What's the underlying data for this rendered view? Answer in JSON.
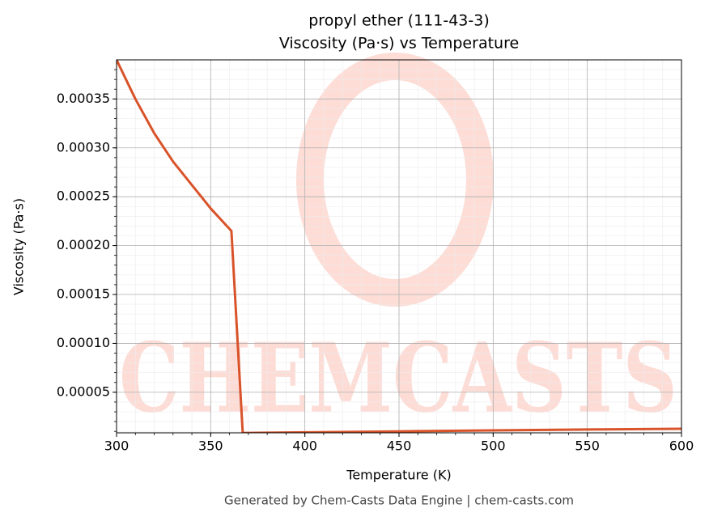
{
  "chart_data": {
    "type": "line",
    "title": "propyl ether (111-43-3)",
    "subtitle": "Viscosity (Pa·s) vs Temperature",
    "x_label": "Temperature (K)",
    "y_label": "Viscosity (Pa·s)",
    "footer": "Generated by Chem-Casts Data Engine | chem-casts.com",
    "watermark": "CHEMCASTS",
    "x": [
      300,
      310,
      320,
      330,
      340,
      350,
      361,
      367,
      400,
      450,
      500,
      550,
      600
    ],
    "series": [
      {
        "name": "Viscosity",
        "color": "#d9532a",
        "values": [
          0.00039,
          0.00035,
          0.000315,
          0.000286,
          0.000262,
          0.000238,
          0.000215,
          8.3e-06,
          9e-06,
          1e-05,
          1.1e-05,
          1.19e-05,
          1.26e-05
        ]
      }
    ],
    "xlim": [
      300,
      600
    ],
    "xticks": [
      300,
      350,
      400,
      450,
      500,
      550,
      600
    ],
    "ylim": [
      8.5e-06,
      0.00039
    ],
    "yticks": [
      {
        "value": 5e-05,
        "label": "0.00005"
      },
      {
        "value": 0.0001,
        "label": "0.00010"
      },
      {
        "value": 0.00015,
        "label": "0.00015"
      },
      {
        "value": 0.0002,
        "label": "0.00020"
      },
      {
        "value": 0.00025,
        "label": "0.00025"
      },
      {
        "value": 0.0003,
        "label": "0.00030"
      },
      {
        "value": 0.00035,
        "label": "0.00035"
      }
    ],
    "grid": true
  }
}
